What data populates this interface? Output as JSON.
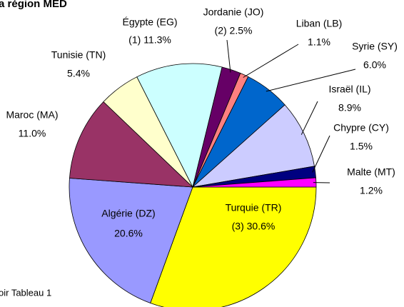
{
  "chart_data": {
    "type": "pie",
    "title": "a région MED",
    "note": "oir Tableau 1",
    "categories": [
      "Turquie (TR)",
      "Algérie (DZ)",
      "Maroc (MA)",
      "Tunisie (TN)",
      "Égypte (EG)",
      "Jordanie (JO)",
      "Liban (LB)",
      "Syrie (SY)",
      "Israël (IL)",
      "Chypre (CY)",
      "Malte (MT)"
    ],
    "values": [
      30.6,
      20.6,
      11.0,
      5.4,
      11.3,
      2.5,
      1.1,
      6.0,
      8.9,
      1.5,
      1.2
    ],
    "value_labels": [
      "(3) 30.6%",
      "20.6%",
      "11.0%",
      "5.4%",
      "(1) 11.3%",
      "(2) 2.5%",
      "1.1%",
      "6.0%",
      "8.9%",
      "1.5%",
      "1.2%"
    ],
    "colors": [
      "#ffff00",
      "#9999ff",
      "#993366",
      "#ffffcc",
      "#ccffff",
      "#660066",
      "#ff8080",
      "#0066cc",
      "#ccccff",
      "#000080",
      "#ff00ff"
    ]
  }
}
